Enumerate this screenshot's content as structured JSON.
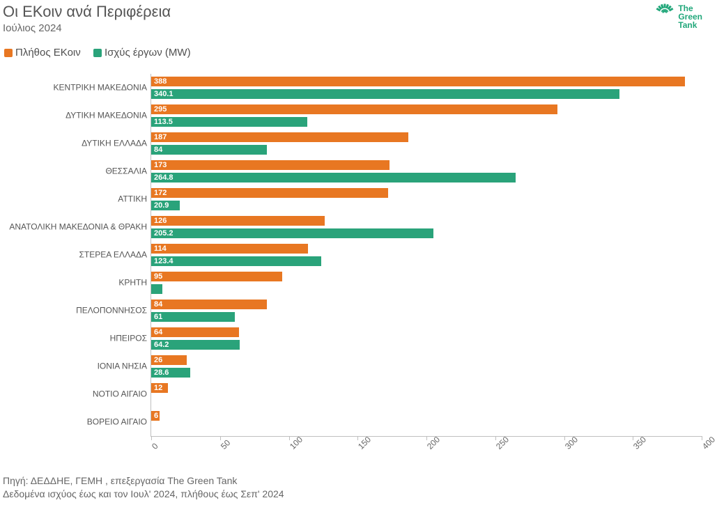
{
  "header": {
    "title": "Οι ΕΚοιν ανά Περιφέρεια",
    "subtitle": "Ιούλιος 2024",
    "logo_line1": "The",
    "logo_line2": "Green",
    "logo_line3": "Tank",
    "logo_color": "#21a77a"
  },
  "legend": {
    "items": [
      {
        "label": "Πλήθος ΕΚοιν",
        "color": "#e87722"
      },
      {
        "label": "Ισχύς έργων (MW)",
        "color": "#2aa37a"
      }
    ]
  },
  "chart": {
    "type": "grouped-horizontal-bar",
    "xlim": [
      0,
      400
    ],
    "xtick_step": 50,
    "xticks": [
      0,
      50,
      100,
      150,
      200,
      250,
      300,
      350,
      400
    ],
    "series": [
      {
        "key": "count",
        "color": "#e87722",
        "value_label_color": "#ffffff"
      },
      {
        "key": "mw",
        "color": "#2aa37a",
        "value_label_color": "#ffffff"
      }
    ],
    "rows": [
      {
        "label": "ΚΕΝΤΡΙΚΗ ΜΑΚΕΔΟΝΙΑ",
        "count": 388,
        "mw": 340.1,
        "count_label": "388",
        "mw_label": "340.1"
      },
      {
        "label": "ΔΥΤΙΚΗ ΜΑΚΕΔΟΝΙΑ",
        "count": 295,
        "mw": 113.5,
        "count_label": "295",
        "mw_label": "113.5"
      },
      {
        "label": "ΔΥΤΙΚΗ ΕΛΛΑΔΑ",
        "count": 187,
        "mw": 84,
        "count_label": "187",
        "mw_label": "84"
      },
      {
        "label": "ΘΕΣΣΑΛΙΑ",
        "count": 173,
        "mw": 264.8,
        "count_label": "173",
        "mw_label": "264.8"
      },
      {
        "label": "ΑΤΤΙΚΗ",
        "count": 172,
        "mw": 20.9,
        "count_label": "172",
        "mw_label": "20.9"
      },
      {
        "label": "ΑΝΑΤΟΛΙΚΗ ΜΑΚΕΔΟΝΙΑ & ΘΡΑΚΗ",
        "count": 126,
        "mw": 205.2,
        "count_label": "126",
        "mw_label": "205.2"
      },
      {
        "label": "ΣΤΕΡΕΑ ΕΛΛΑΔΑ",
        "count": 114,
        "mw": 123.4,
        "count_label": "114",
        "mw_label": "123.4"
      },
      {
        "label": "ΚΡΗΤΗ",
        "count": 95,
        "mw": 8,
        "count_label": "95",
        "mw_label": ""
      },
      {
        "label": "ΠΕΛΟΠΟΝΝΗΣΟΣ",
        "count": 84,
        "mw": 61,
        "count_label": "84",
        "mw_label": "61"
      },
      {
        "label": "ΗΠΕΙΡΟΣ",
        "count": 64,
        "mw": 64.2,
        "count_label": "64",
        "mw_label": "64.2"
      },
      {
        "label": "ΙΟΝΙΑ ΝΗΣΙΑ",
        "count": 26,
        "mw": 28.6,
        "count_label": "26",
        "mw_label": "28.6"
      },
      {
        "label": "ΝΟΤΙΟ ΑΙΓΑΙΟ",
        "count": 12,
        "mw": 0,
        "count_label": "12",
        "mw_label": ""
      },
      {
        "label": "ΒΟΡΕΙΟ ΑΙΓΑΙΟ",
        "count": 6,
        "mw": 0,
        "count_label": "6",
        "mw_label": ""
      }
    ],
    "bar_label_fontsize": 11,
    "ylabel_fontsize": 12,
    "xtick_fontsize": 12,
    "xtick_rotation_deg": -45,
    "background_color": "#ffffff",
    "axis_color": "#bfbfbf"
  },
  "footer": {
    "line1": "Πηγή: ΔΕΔΔΗΕ, ΓΕΜΗ , επεξεργασία The Green Tank",
    "line2": "Δεδομένα ισχύος έως και τον Ιουλ' 2024, πλήθους έως Σεπ' 2024"
  }
}
